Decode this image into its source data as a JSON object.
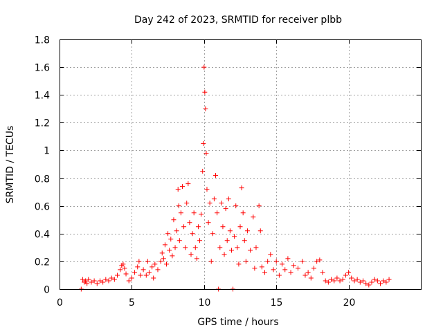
{
  "chart_data": {
    "type": "scatter",
    "title": "Day 242 of 2023, SRMTID for receiver plbb",
    "xlabel": "GPS time / hours",
    "ylabel": "SRMTID / TECUs",
    "xlim": [
      0,
      25
    ],
    "ylim": [
      0,
      1.8
    ],
    "xticks": [
      0,
      5,
      10,
      15,
      20
    ],
    "xtick_labels": [
      "0",
      "5",
      "10",
      "15",
      "20"
    ],
    "yticks": [
      0,
      0.2,
      0.4,
      0.6,
      0.8,
      1,
      1.2,
      1.4,
      1.6,
      1.8
    ],
    "ytick_labels": [
      "0",
      "0.2",
      "0.4",
      "0.6",
      "0.8",
      "1",
      "1.2",
      "1.4",
      "1.6",
      "1.8"
    ],
    "grid": true,
    "marker": "+",
    "marker_color": "#ff0000",
    "series": [
      {
        "name": "SRMTID",
        "points": [
          [
            1.5,
            0.0
          ],
          [
            1.6,
            0.07
          ],
          [
            1.7,
            0.05
          ],
          [
            1.8,
            0.06
          ],
          [
            1.9,
            0.04
          ],
          [
            2.0,
            0.07
          ],
          [
            2.2,
            0.05
          ],
          [
            2.4,
            0.06
          ],
          [
            2.6,
            0.04
          ],
          [
            2.8,
            0.06
          ],
          [
            3.0,
            0.05
          ],
          [
            3.2,
            0.07
          ],
          [
            3.4,
            0.06
          ],
          [
            3.6,
            0.08
          ],
          [
            3.8,
            0.07
          ],
          [
            4.0,
            0.1
          ],
          [
            4.2,
            0.14
          ],
          [
            4.3,
            0.17
          ],
          [
            4.4,
            0.18
          ],
          [
            4.5,
            0.15
          ],
          [
            4.6,
            0.11
          ],
          [
            4.8,
            0.06
          ],
          [
            5.0,
            0.08
          ],
          [
            5.2,
            0.12
          ],
          [
            5.4,
            0.16
          ],
          [
            5.5,
            0.2
          ],
          [
            5.6,
            0.1
          ],
          [
            5.8,
            0.14
          ],
          [
            6.0,
            0.1
          ],
          [
            6.1,
            0.2
          ],
          [
            6.2,
            0.12
          ],
          [
            6.4,
            0.16
          ],
          [
            6.5,
            0.08
          ],
          [
            6.6,
            0.18
          ],
          [
            6.8,
            0.14
          ],
          [
            7.0,
            0.2
          ],
          [
            7.1,
            0.26
          ],
          [
            7.2,
            0.22
          ],
          [
            7.3,
            0.32
          ],
          [
            7.4,
            0.18
          ],
          [
            7.5,
            0.4
          ],
          [
            7.6,
            0.28
          ],
          [
            7.7,
            0.36
          ],
          [
            7.8,
            0.24
          ],
          [
            7.9,
            0.5
          ],
          [
            8.0,
            0.3
          ],
          [
            8.1,
            0.42
          ],
          [
            8.2,
            0.72
          ],
          [
            8.25,
            0.6
          ],
          [
            8.3,
            0.35
          ],
          [
            8.4,
            0.55
          ],
          [
            8.5,
            0.74
          ],
          [
            8.6,
            0.45
          ],
          [
            8.7,
            0.3
          ],
          [
            8.8,
            0.62
          ],
          [
            8.9,
            0.76
          ],
          [
            9.0,
            0.48
          ],
          [
            9.1,
            0.25
          ],
          [
            9.2,
            0.4
          ],
          [
            9.3,
            0.55
          ],
          [
            9.4,
            0.3
          ],
          [
            9.5,
            0.22
          ],
          [
            9.6,
            0.45
          ],
          [
            9.7,
            0.35
          ],
          [
            9.8,
            0.54
          ],
          [
            9.9,
            0.85
          ],
          [
            9.95,
            1.05
          ],
          [
            10.0,
            1.6
          ],
          [
            10.05,
            1.42
          ],
          [
            10.1,
            1.3
          ],
          [
            10.15,
            0.98
          ],
          [
            10.2,
            0.72
          ],
          [
            10.3,
            0.48
          ],
          [
            10.4,
            0.62
          ],
          [
            10.5,
            0.2
          ],
          [
            10.6,
            0.4
          ],
          [
            10.7,
            0.65
          ],
          [
            10.8,
            0.82
          ],
          [
            10.9,
            0.55
          ],
          [
            11.0,
            0.0
          ],
          [
            11.1,
            0.3
          ],
          [
            11.2,
            0.62
          ],
          [
            11.3,
            0.45
          ],
          [
            11.4,
            0.25
          ],
          [
            11.5,
            0.58
          ],
          [
            11.6,
            0.35
          ],
          [
            11.7,
            0.65
          ],
          [
            11.8,
            0.42
          ],
          [
            11.9,
            0.28
          ],
          [
            12.0,
            0.0
          ],
          [
            12.1,
            0.38
          ],
          [
            12.2,
            0.6
          ],
          [
            12.3,
            0.3
          ],
          [
            12.4,
            0.18
          ],
          [
            12.5,
            0.45
          ],
          [
            12.6,
            0.73
          ],
          [
            12.7,
            0.55
          ],
          [
            12.8,
            0.35
          ],
          [
            12.9,
            0.2
          ],
          [
            13.0,
            0.42
          ],
          [
            13.2,
            0.28
          ],
          [
            13.4,
            0.52
          ],
          [
            13.5,
            0.15
          ],
          [
            13.6,
            0.3
          ],
          [
            13.8,
            0.6
          ],
          [
            13.9,
            0.42
          ],
          [
            14.0,
            0.16
          ],
          [
            14.2,
            0.12
          ],
          [
            14.4,
            0.2
          ],
          [
            14.6,
            0.25
          ],
          [
            14.8,
            0.14
          ],
          [
            15.0,
            0.2
          ],
          [
            15.2,
            0.1
          ],
          [
            15.4,
            0.18
          ],
          [
            15.6,
            0.14
          ],
          [
            15.8,
            0.22
          ],
          [
            16.0,
            0.12
          ],
          [
            16.2,
            0.17
          ],
          [
            16.5,
            0.15
          ],
          [
            16.8,
            0.2
          ],
          [
            17.0,
            0.1
          ],
          [
            17.2,
            0.12
          ],
          [
            17.4,
            0.08
          ],
          [
            17.6,
            0.15
          ],
          [
            17.8,
            0.2
          ],
          [
            18.0,
            0.21
          ],
          [
            18.2,
            0.12
          ],
          [
            18.4,
            0.06
          ],
          [
            18.6,
            0.05
          ],
          [
            18.8,
            0.07
          ],
          [
            19.0,
            0.06
          ],
          [
            19.2,
            0.08
          ],
          [
            19.4,
            0.06
          ],
          [
            19.6,
            0.07
          ],
          [
            19.8,
            0.1
          ],
          [
            20.0,
            0.12
          ],
          [
            20.2,
            0.08
          ],
          [
            20.4,
            0.06
          ],
          [
            20.6,
            0.07
          ],
          [
            20.8,
            0.05
          ],
          [
            21.0,
            0.06
          ],
          [
            21.2,
            0.04
          ],
          [
            21.4,
            0.03
          ],
          [
            21.6,
            0.05
          ],
          [
            21.8,
            0.07
          ],
          [
            22.0,
            0.06
          ],
          [
            22.2,
            0.04
          ],
          [
            22.4,
            0.06
          ],
          [
            22.6,
            0.05
          ],
          [
            22.8,
            0.07
          ]
        ]
      }
    ]
  }
}
